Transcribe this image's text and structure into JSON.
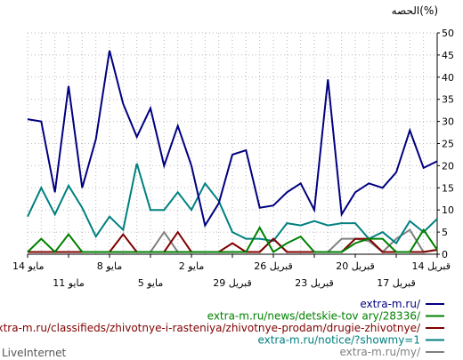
{
  "chart_data": {
    "type": "line",
    "y_unit_label": "الحصه(%)",
    "ylim": [
      0,
      50
    ],
    "y_ticks": [
      0,
      5,
      10,
      15,
      20,
      25,
      30,
      35,
      40,
      45,
      50
    ],
    "grid": true,
    "x": [
      "14 أبريل",
      "15 أبريل",
      "16 أبريل",
      "17 أبريل",
      "18 أبريل",
      "19 أبريل",
      "20 أبريل",
      "21 أبريل",
      "22 أبريل",
      "23 أبريل",
      "24 أبريل",
      "25 أبريل",
      "26 أبريل",
      "27 أبريل",
      "28 أبريل",
      "29 أبريل",
      "30 أبريل",
      "1 مايو",
      "2 مايو",
      "3 مايو",
      "4 مايو",
      "5 مايو",
      "6 مايو",
      "7 مايو",
      "8 مايو",
      "9 مايو",
      "10 مايو",
      "11 مايو",
      "12 مايو",
      "13 مايو",
      "14 مايو"
    ],
    "x_tick_labels_top": [
      {
        "index": 0,
        "label": "14 قبريل"
      },
      {
        "index": 6,
        "label": "20 قبريل"
      },
      {
        "index": 12,
        "label": "26 قبريل"
      },
      {
        "index": 18,
        "label": "2 مايو"
      },
      {
        "index": 24,
        "label": "8 مايو"
      },
      {
        "index": 30,
        "label": "14 مايو"
      }
    ],
    "x_tick_labels_bottom": [
      {
        "index": 3,
        "label": "17 قبريل"
      },
      {
        "index": 9,
        "label": "23 قبريل"
      },
      {
        "index": 15,
        "label": "29 قبريل"
      },
      {
        "index": 21,
        "label": "5 مايو"
      },
      {
        "index": 27,
        "label": "11 مايو"
      }
    ],
    "series": [
      {
        "name": "extra-m.ru/",
        "color": "#000080",
        "values": [
          21,
          19.5,
          28,
          18.5,
          15,
          16,
          14,
          9,
          39.5,
          10,
          16,
          14,
          11,
          10.5,
          23.5,
          22.5,
          11.5,
          6.5,
          20,
          29,
          20,
          33,
          26.5,
          34,
          46,
          26,
          15,
          38,
          14,
          30,
          30.5
        ]
      },
      {
        "name": "extra-m.ru/news/detskie-tov ary/28336/",
        "color": "#008000",
        "values": [
          1,
          5.5,
          0.5,
          0.5,
          3.5,
          3.5,
          2.5,
          0.5,
          0.5,
          0.5,
          4,
          2.5,
          0.5,
          6,
          0.5,
          0.5,
          0.5,
          0.5,
          0.5,
          0.5,
          0.5,
          0.5,
          0.5,
          0.5,
          0.5,
          0.5,
          0.5,
          4.5,
          0.5,
          3.5,
          0.5
        ]
      },
      {
        "name": "extra-m.ru/classifieds/zhivotnye-i-rasteniya/zhivotnye-prodam/drugie-zhivotnye/",
        "color": "#800000",
        "values": [
          1,
          0.5,
          0.5,
          0.5,
          0.5,
          3.5,
          3.5,
          0.5,
          0.5,
          0.5,
          0.5,
          0.5,
          3.5,
          0.5,
          0.5,
          2.5,
          0.5,
          0.5,
          0.5,
          5,
          0.5,
          0.5,
          0.5,
          4.5,
          0.5,
          0.5,
          0.5,
          0.5,
          0.5,
          0.5,
          0.5
        ]
      },
      {
        "name": "extra-m.ru/notice/?showmy=1",
        "color": "#008080",
        "values": [
          8,
          5,
          7.5,
          2.5,
          5,
          3.5,
          7,
          7,
          6.5,
          7.5,
          6.5,
          7,
          3,
          3.5,
          3.5,
          5,
          12,
          16,
          10,
          14,
          10,
          10,
          20.5,
          5.5,
          8.5,
          4,
          10.5,
          15.5,
          9,
          15,
          8.5
        ]
      },
      {
        "name": "extra-m.ru/my/",
        "color": "#808080",
        "values": [
          1,
          0.5,
          5.5,
          3.5,
          0.5,
          3,
          3.5,
          3.5,
          0.5,
          0.5,
          0.5,
          0.5,
          3.5,
          0.5,
          0.5,
          0.5,
          0.5,
          0.5,
          0.5,
          0.5,
          5,
          0.5,
          0.5,
          0.5,
          0.5,
          0.5,
          0.5,
          0.5,
          0.5,
          0.5,
          0.5
        ]
      }
    ]
  },
  "footer": {
    "brand": "LiveInternet"
  }
}
